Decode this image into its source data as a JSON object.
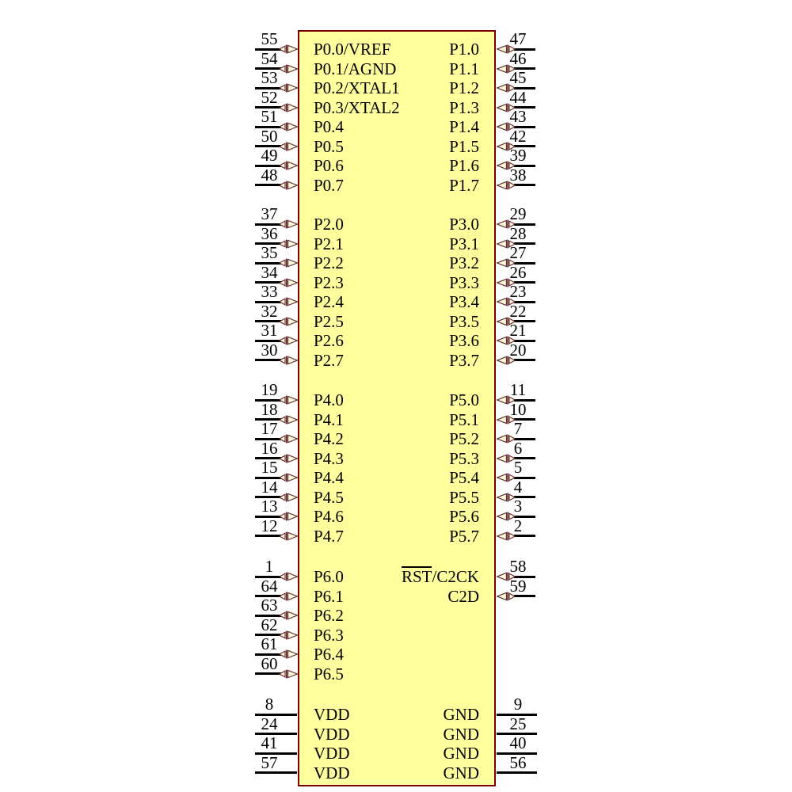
{
  "schematic": {
    "background_color": "#ffffff",
    "chip_fill": "#ffff9e",
    "chip_border_color": "#7b0000",
    "pin_line_color": "#000000",
    "text_color": "#000000",
    "arrow_fill": "#fffbe0",
    "arrow_stroke": "#5c2424"
  },
  "pin_groups": [
    {
      "name": "port0-port1",
      "pin_style": "bidirectional",
      "left": [
        {
          "num": "55",
          "label": "P0.0/VREF"
        },
        {
          "num": "54",
          "label": "P0.1/AGND"
        },
        {
          "num": "53",
          "label": "P0.2/XTAL1"
        },
        {
          "num": "52",
          "label": "P0.3/XTAL2"
        },
        {
          "num": "51",
          "label": "P0.4"
        },
        {
          "num": "50",
          "label": "P0.5"
        },
        {
          "num": "49",
          "label": "P0.6"
        },
        {
          "num": "48",
          "label": "P0.7"
        }
      ],
      "right": [
        {
          "num": "47",
          "label": "P1.0"
        },
        {
          "num": "46",
          "label": "P1.1"
        },
        {
          "num": "45",
          "label": "P1.2"
        },
        {
          "num": "44",
          "label": "P1.3"
        },
        {
          "num": "43",
          "label": "P1.4"
        },
        {
          "num": "42",
          "label": "P1.5"
        },
        {
          "num": "39",
          "label": "P1.6"
        },
        {
          "num": "38",
          "label": "P1.7"
        }
      ]
    },
    {
      "name": "port2-port3",
      "pin_style": "bidirectional",
      "left": [
        {
          "num": "37",
          "label": "P2.0"
        },
        {
          "num": "36",
          "label": "P2.1"
        },
        {
          "num": "35",
          "label": "P2.2"
        },
        {
          "num": "34",
          "label": "P2.3"
        },
        {
          "num": "33",
          "label": "P2.4"
        },
        {
          "num": "32",
          "label": "P2.5"
        },
        {
          "num": "31",
          "label": "P2.6"
        },
        {
          "num": "30",
          "label": "P2.7"
        }
      ],
      "right": [
        {
          "num": "29",
          "label": "P3.0"
        },
        {
          "num": "28",
          "label": "P3.1"
        },
        {
          "num": "27",
          "label": "P3.2"
        },
        {
          "num": "26",
          "label": "P3.3"
        },
        {
          "num": "23",
          "label": "P3.4"
        },
        {
          "num": "22",
          "label": "P3.5"
        },
        {
          "num": "21",
          "label": "P3.6"
        },
        {
          "num": "20",
          "label": "P3.7"
        }
      ]
    },
    {
      "name": "port4-port5",
      "pin_style": "bidirectional",
      "left": [
        {
          "num": "19",
          "label": "P4.0"
        },
        {
          "num": "18",
          "label": "P4.1"
        },
        {
          "num": "17",
          "label": "P4.2"
        },
        {
          "num": "16",
          "label": "P4.3"
        },
        {
          "num": "15",
          "label": "P4.4"
        },
        {
          "num": "14",
          "label": "P4.5"
        },
        {
          "num": "13",
          "label": "P4.6"
        },
        {
          "num": "12",
          "label": "P4.7"
        }
      ],
      "right": [
        {
          "num": "11",
          "label": "P5.0"
        },
        {
          "num": "10",
          "label": "P5.1"
        },
        {
          "num": "7",
          "label": "P5.2"
        },
        {
          "num": "6",
          "label": "P5.3"
        },
        {
          "num": "5",
          "label": "P5.4"
        },
        {
          "num": "4",
          "label": "P5.5"
        },
        {
          "num": "3",
          "label": "P5.6"
        },
        {
          "num": "2",
          "label": "P5.7"
        }
      ]
    },
    {
      "name": "port6-debug",
      "pin_style": "bidirectional",
      "left": [
        {
          "num": "1",
          "label": "P6.0"
        },
        {
          "num": "64",
          "label": "P6.1"
        },
        {
          "num": "63",
          "label": "P6.2"
        },
        {
          "num": "62",
          "label": "P6.3"
        },
        {
          "num": "61",
          "label": "P6.4"
        },
        {
          "num": "60",
          "label": "P6.5"
        }
      ],
      "right": [
        {
          "num": "58",
          "overline": "RST",
          "rest": "/C2CK"
        },
        {
          "num": "59",
          "label": "C2D"
        }
      ]
    },
    {
      "name": "power",
      "pin_style": "power",
      "left": [
        {
          "num": "8",
          "label": "VDD"
        },
        {
          "num": "24",
          "label": "VDD"
        },
        {
          "num": "41",
          "label": "VDD"
        },
        {
          "num": "57",
          "label": "VDD"
        }
      ],
      "right": [
        {
          "num": "9",
          "label": "GND"
        },
        {
          "num": "25",
          "label": "GND"
        },
        {
          "num": "40",
          "label": "GND"
        },
        {
          "num": "56",
          "label": "GND"
        }
      ]
    }
  ]
}
